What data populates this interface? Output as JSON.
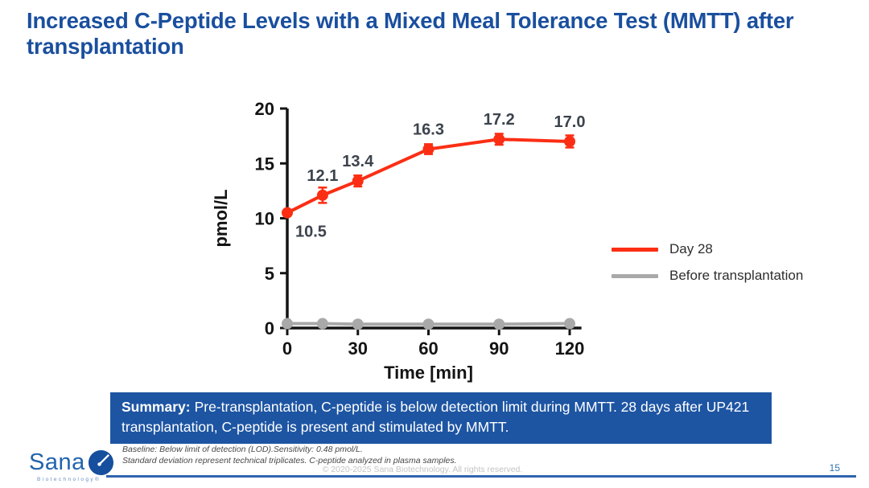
{
  "slide": {
    "title": "Increased C-Peptide Levels with a Mixed Meal Tolerance Test (MMTT) after transplantation",
    "page_number": "15",
    "copyright": "© 2020-2025 Sana Biotechnology. All rights reserved.",
    "footnotes": [
      "Baseline: Below limit of detection (LOD).Sensitivity: 0.48 pmol/L.",
      "Standard deviation represent technical triplicates. C-peptide analyzed in plasma samples."
    ],
    "summary": {
      "label": "Summary:",
      "text": "Pre-transplantation, C-peptide is below detection limit during MMTT. 28 days after UP421 transplantation, C-peptide is present and stimulated by MMTT."
    },
    "logo": {
      "brand": "Sana",
      "sub": "Biotechnology®"
    }
  },
  "colors": {
    "title_blue": "#1A4F9E",
    "summary_bg": "#1D55A3",
    "series_red": "#FB2E14",
    "series_gray": "#A9A9A9",
    "point_label": "#3C434C",
    "axis": "#141414",
    "page_blue": "#2E74B5"
  },
  "chart_data": {
    "type": "line",
    "title": "",
    "xlabel": "Time [min]",
    "ylabel": "pmol/L",
    "xlim": [
      0,
      125
    ],
    "ylim": [
      0,
      20
    ],
    "xticks": [
      0,
      30,
      60,
      90,
      120
    ],
    "yticks": [
      0,
      5,
      10,
      15,
      20
    ],
    "grid": false,
    "legend_position": "right",
    "x": [
      0,
      15,
      30,
      60,
      90,
      120
    ],
    "series": [
      {
        "name": "Day 28",
        "color": "#FB2E14",
        "values": [
          10.5,
          12.1,
          13.4,
          16.3,
          17.2,
          17.0
        ],
        "sd": [
          0.15,
          0.7,
          0.5,
          0.45,
          0.5,
          0.55
        ],
        "point_labels": [
          "10.5",
          "12.1",
          "13.4",
          "16.3",
          "17.2",
          "17.0"
        ]
      },
      {
        "name": "Before transplantation",
        "color": "#A9A9A9",
        "values": [
          0.4,
          0.4,
          0.35,
          0.35,
          0.35,
          0.4
        ],
        "sd": [
          0,
          0,
          0,
          0,
          0,
          0
        ],
        "point_labels": []
      }
    ]
  }
}
